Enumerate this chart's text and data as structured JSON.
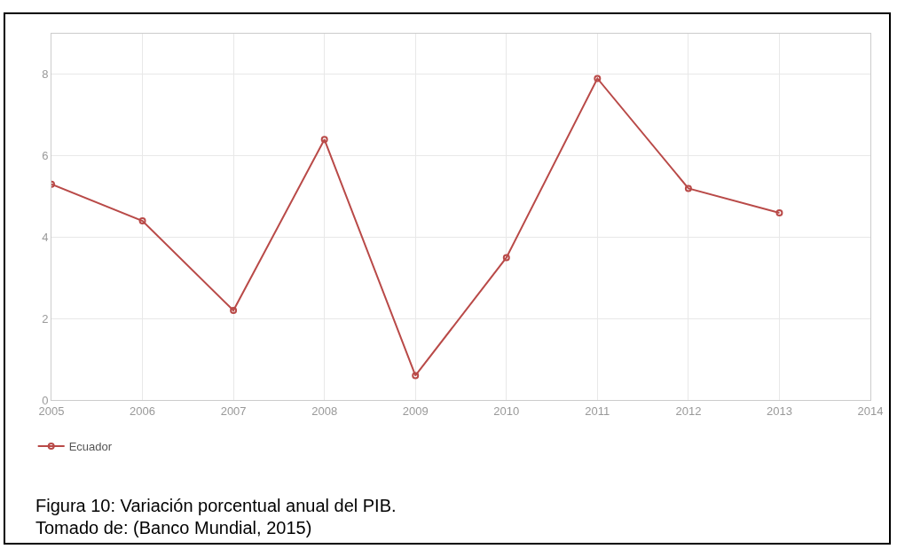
{
  "chart_data": {
    "type": "line",
    "x": [
      2005,
      2006,
      2007,
      2008,
      2009,
      2010,
      2011,
      2012,
      2013
    ],
    "series": [
      {
        "name": "Ecuador",
        "color": "#b94a48",
        "values": [
          5.3,
          4.4,
          2.2,
          6.4,
          0.6,
          3.5,
          7.9,
          5.2,
          4.6
        ]
      }
    ],
    "xlim": [
      2005,
      2014
    ],
    "xticks": [
      2005,
      2006,
      2007,
      2008,
      2009,
      2010,
      2011,
      2012,
      2013,
      2014
    ],
    "ylim": [
      0,
      9
    ],
    "yticks": [
      0,
      2,
      4,
      6,
      8
    ],
    "grid": true,
    "legend": "bottom left",
    "marker": "circle",
    "line_style": "solid",
    "annotations": [
      "Figura 10: Variación porcentual anual del PIB.",
      "Tomado de: (Banco Mundial, 2015)"
    ]
  }
}
